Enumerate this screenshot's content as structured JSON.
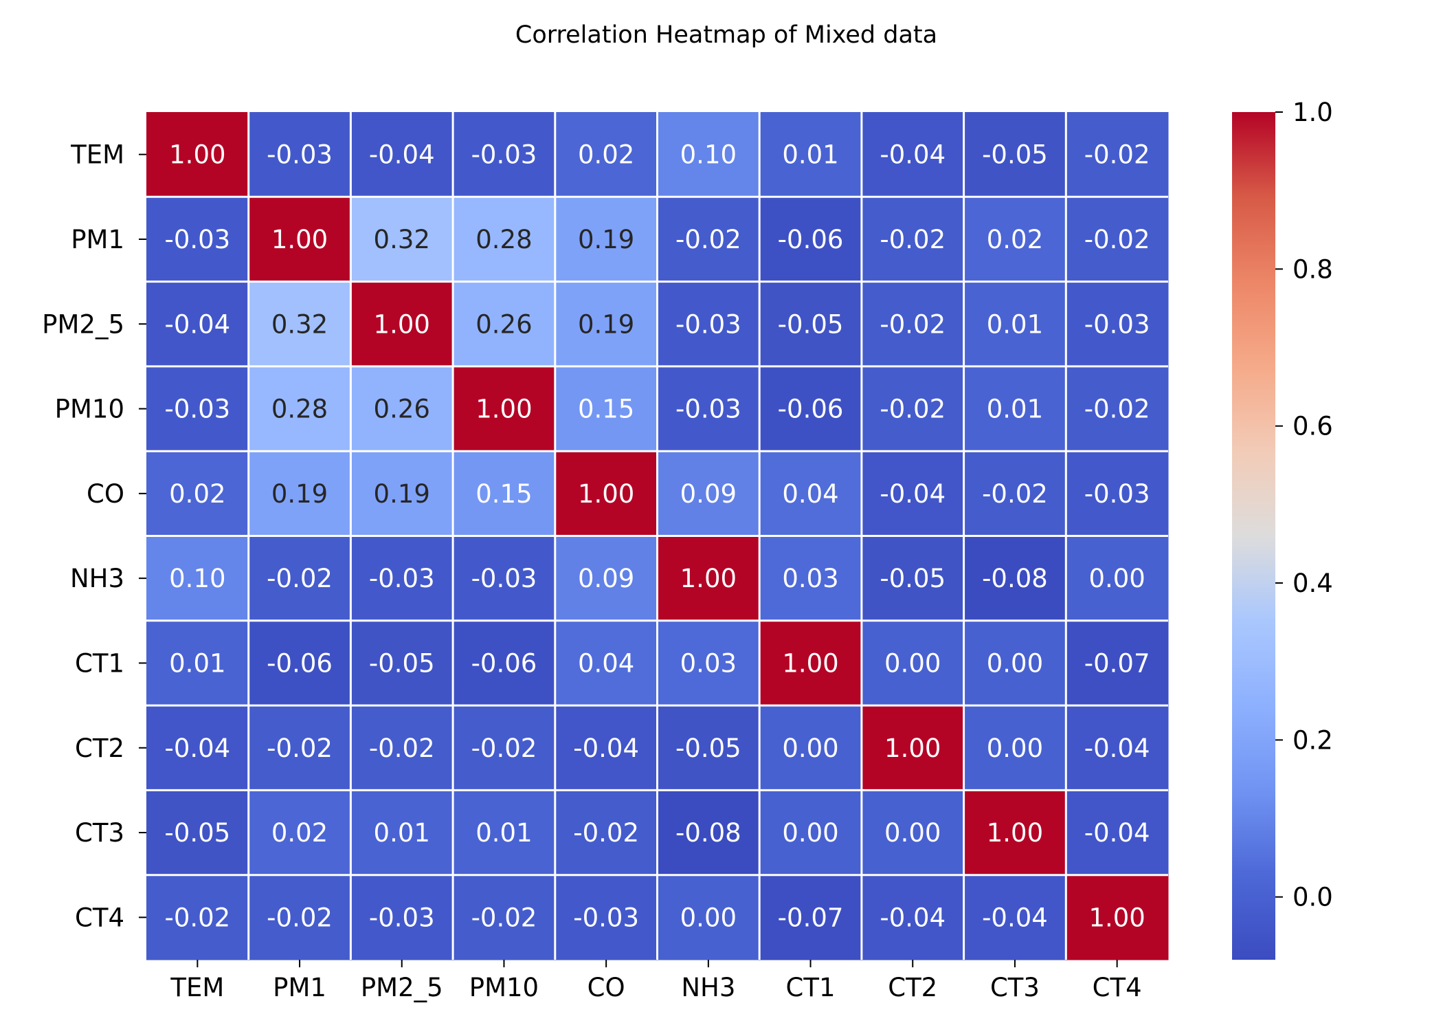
{
  "chart_data": {
    "type": "heatmap",
    "title": "Correlation Heatmap of Mixed data",
    "xlabel": "",
    "ylabel": "",
    "labels": [
      "TEM",
      "PM1",
      "PM2_5",
      "PM10",
      "CO",
      "NH3",
      "CT1",
      "CT2",
      "CT3",
      "CT4"
    ],
    "matrix": [
      [
        1.0,
        -0.03,
        -0.04,
        -0.03,
        0.02,
        0.1,
        0.01,
        -0.04,
        -0.05,
        -0.02
      ],
      [
        -0.03,
        1.0,
        0.32,
        0.28,
        0.19,
        -0.02,
        -0.06,
        -0.02,
        0.02,
        -0.02
      ],
      [
        -0.04,
        0.32,
        1.0,
        0.26,
        0.19,
        -0.03,
        -0.05,
        -0.02,
        0.01,
        -0.03
      ],
      [
        -0.03,
        0.28,
        0.26,
        1.0,
        0.15,
        -0.03,
        -0.06,
        -0.02,
        0.01,
        -0.02
      ],
      [
        0.02,
        0.19,
        0.19,
        0.15,
        1.0,
        0.09,
        0.04,
        -0.04,
        -0.02,
        -0.03
      ],
      [
        0.1,
        -0.02,
        -0.03,
        -0.03,
        0.09,
        1.0,
        0.03,
        -0.05,
        -0.08,
        -0.0
      ],
      [
        0.01,
        -0.06,
        -0.05,
        -0.06,
        0.04,
        0.03,
        1.0,
        -0.0,
        -0.0,
        -0.07
      ],
      [
        -0.04,
        -0.02,
        -0.02,
        -0.02,
        -0.04,
        -0.05,
        -0.0,
        1.0,
        -0.0,
        -0.04
      ],
      [
        -0.05,
        0.02,
        0.01,
        0.01,
        -0.02,
        -0.08,
        -0.0,
        -0.0,
        1.0,
        -0.04
      ],
      [
        -0.02,
        -0.02,
        -0.03,
        -0.02,
        -0.03,
        -0.0,
        -0.07,
        -0.04,
        -0.04,
        1.0
      ]
    ],
    "value_format": "2 decimals",
    "colormap": "coolwarm",
    "color_range": [
      -0.08,
      1.0
    ],
    "colorbar_ticks": [
      "0.0",
      "0.2",
      "0.4",
      "0.6",
      "0.8",
      "1.0"
    ],
    "colorbar_tick_values": [
      0.0,
      0.2,
      0.4,
      0.6,
      0.8,
      1.0
    ],
    "grid_lines_color": "#ffffff",
    "legend": "colorbar right"
  }
}
